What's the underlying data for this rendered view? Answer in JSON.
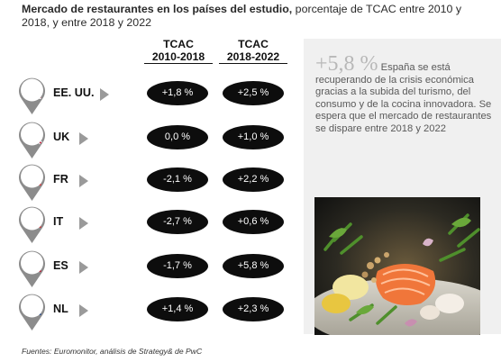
{
  "header": {
    "title_bold": "Mercado de restaurantes en los países del estudio,",
    "title_rest": " porcentaje de TCAC entre 2010 y 2018, y entre 2018 y 2022"
  },
  "columns": [
    {
      "line1": "TCAC",
      "line2": "2010-2018"
    },
    {
      "line1": "TCAC",
      "line2": "2018-2022"
    }
  ],
  "chart_data": {
    "type": "table",
    "columns": [
      "TCAC 2010-2018",
      "TCAC 2018-2022"
    ],
    "rows": [
      {
        "country": "EE. UU.",
        "flag": "us-flag-icon",
        "cagr_2010_2018": "+1,8 %",
        "cagr_2018_2022": "+2,5 %"
      },
      {
        "country": "UK",
        "flag": "uk-flag-icon",
        "cagr_2010_2018": "0,0 %",
        "cagr_2018_2022": "+1,0 %"
      },
      {
        "country": "FR",
        "flag": "france-flag-icon",
        "cagr_2010_2018": "-2,1 %",
        "cagr_2018_2022": "+2,2 %"
      },
      {
        "country": "IT",
        "flag": "italy-flag-icon",
        "cagr_2010_2018": "-2,7 %",
        "cagr_2018_2022": "+0,6 %"
      },
      {
        "country": "ES",
        "flag": "spain-flag-icon",
        "cagr_2010_2018": "-1,7 %",
        "cagr_2018_2022": "+5,8 %"
      },
      {
        "country": "NL",
        "flag": "netherlands-flag-icon",
        "cagr_2010_2018": "+1,4 %",
        "cagr_2018_2022": "+2,3 %"
      }
    ]
  },
  "sidebar": {
    "highlight": "+5,8 %",
    "text": "España se está recuperando de la crisis económica gracias a la subida del turismo, del consumo y de la cocina innovadora. Se espera que el mercado de restaurantes se dispare entre 2018 y 2022"
  },
  "footer": {
    "source": "Fuentes: Euromonitor, análisis de Strategy& de PwC"
  },
  "colors": {
    "pill": "#0d0d0d",
    "sidebar_bg": "#f0f0f0",
    "arrow": "#9a9a9a",
    "pin": "#8c8c8c"
  }
}
